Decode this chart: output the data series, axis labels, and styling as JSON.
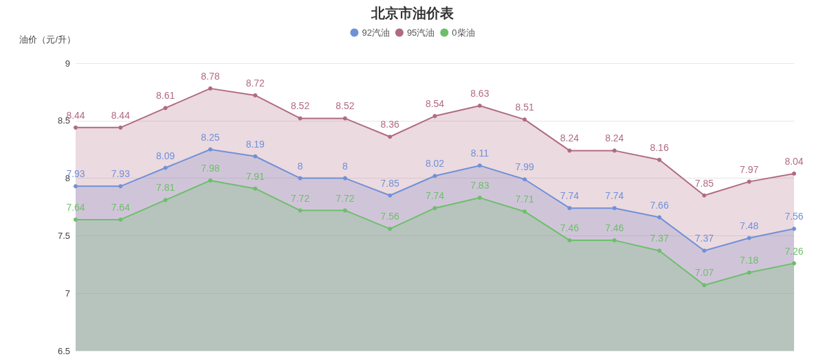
{
  "chart_data": {
    "type": "area",
    "title": "北京市油价表",
    "ylabel": "油价（元/升）",
    "categories": [
      null,
      null,
      null,
      null,
      null,
      null,
      null,
      null,
      null,
      null,
      null,
      null,
      null,
      null,
      null,
      null,
      null
    ],
    "series": [
      {
        "name": "92汽油",
        "color": "#7090d8",
        "values": [
          7.93,
          7.93,
          8.09,
          8.25,
          8.19,
          8,
          8,
          7.85,
          8.02,
          8.11,
          7.99,
          7.74,
          7.74,
          7.66,
          7.37,
          7.48,
          7.56
        ]
      },
      {
        "name": "95汽油",
        "color": "#b06a84",
        "values": [
          8.44,
          8.44,
          8.61,
          8.78,
          8.72,
          8.52,
          8.52,
          8.36,
          8.54,
          8.63,
          8.51,
          8.24,
          8.24,
          8.16,
          7.85,
          7.97,
          8.04
        ]
      },
      {
        "name": "0柴油",
        "color": "#6cbf6a",
        "values": [
          7.64,
          7.64,
          7.81,
          7.98,
          7.91,
          7.72,
          7.72,
          7.56,
          7.74,
          7.83,
          7.71,
          7.46,
          7.46,
          7.37,
          7.07,
          7.18,
          7.26
        ]
      }
    ],
    "ylim": [
      6.5,
      9
    ],
    "yticks": [
      6.5,
      7,
      7.5,
      8,
      8.5,
      9
    ],
    "grid": "y",
    "legend": "top",
    "marker": "circle",
    "line_style": "solid",
    "data_labels": true,
    "tick_labels": "y"
  }
}
